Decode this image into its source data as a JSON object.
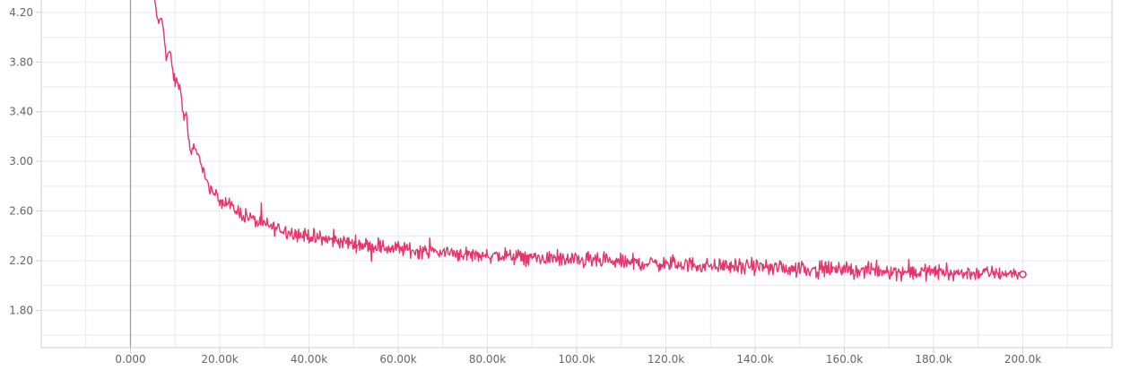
{
  "chart_data": {
    "type": "line",
    "title": "",
    "xlabel": "",
    "ylabel": "",
    "xlim": [
      -20000,
      220000
    ],
    "ylim": [
      1.5,
      4.3
    ],
    "grid": true,
    "legend": "none",
    "series_color": "#e8336d",
    "x_ticks": [
      {
        "value": 0,
        "label": "0.000"
      },
      {
        "value": 20000,
        "label": "20.00k"
      },
      {
        "value": 40000,
        "label": "40.00k"
      },
      {
        "value": 60000,
        "label": "60.00k"
      },
      {
        "value": 80000,
        "label": "80.00k"
      },
      {
        "value": 100000,
        "label": "100.0k"
      },
      {
        "value": 120000,
        "label": "120.0k"
      },
      {
        "value": 140000,
        "label": "140.0k"
      },
      {
        "value": 160000,
        "label": "160.0k"
      },
      {
        "value": 180000,
        "label": "180.0k"
      },
      {
        "value": 200000,
        "label": "200.0k"
      }
    ],
    "y_ticks": [
      {
        "value": 1.8,
        "label": "1.80"
      },
      {
        "value": 2.2,
        "label": "2.20"
      },
      {
        "value": 2.6,
        "label": "2.60"
      },
      {
        "value": 3.0,
        "label": "3.00"
      },
      {
        "value": 3.4,
        "label": "3.40"
      },
      {
        "value": 3.8,
        "label": "3.80"
      },
      {
        "value": 4.2,
        "label": "4.20"
      }
    ],
    "series": [
      {
        "name": "",
        "x": [
          5000,
          5500,
          6000,
          6500,
          7000,
          7500,
          8000,
          8500,
          9000,
          9500,
          10000,
          10500,
          11000,
          11500,
          12000,
          12500,
          13000,
          13500,
          14000,
          14500,
          15000,
          15500,
          16000,
          16500,
          17000,
          17500,
          18000,
          18500,
          19000,
          19500,
          20000,
          21000,
          22000,
          23000,
          24000,
          25000,
          26000,
          27000,
          28000,
          29000,
          30000,
          32000,
          34000,
          36000,
          38000,
          40000,
          42000,
          44000,
          46000,
          48000,
          50000,
          52000,
          54000,
          56000,
          58000,
          60000,
          62000,
          64000,
          66000,
          68000,
          70000,
          72000,
          74000,
          76000,
          78000,
          80000,
          82000,
          84000,
          86000,
          88000,
          90000,
          92000,
          94000,
          96000,
          98000,
          100000,
          102000,
          104000,
          106000,
          108000,
          110000,
          112000,
          114000,
          116000,
          118000,
          120000,
          122000,
          124000,
          126000,
          128000,
          130000,
          132000,
          134000,
          136000,
          138000,
          140000,
          142000,
          144000,
          146000,
          148000,
          150000,
          152000,
          154000,
          156000,
          158000,
          160000,
          162000,
          164000,
          166000,
          168000,
          170000,
          172000,
          174000,
          176000,
          178000,
          180000,
          182000,
          184000,
          186000,
          188000,
          190000,
          192000,
          194000,
          196000,
          198000,
          199000,
          200000
        ],
        "values": [
          4.35,
          4.28,
          4.15,
          4.12,
          4.15,
          4.05,
          3.82,
          3.88,
          3.85,
          3.72,
          3.62,
          3.66,
          3.58,
          3.52,
          3.32,
          3.38,
          3.22,
          3.05,
          3.1,
          3.08,
          3.05,
          3.02,
          2.98,
          2.92,
          2.84,
          2.8,
          2.77,
          2.75,
          2.73,
          2.72,
          2.7,
          2.67,
          2.65,
          2.62,
          2.6,
          2.58,
          2.56,
          2.54,
          2.52,
          2.5,
          2.49,
          2.47,
          2.45,
          2.43,
          2.41,
          2.4,
          2.38,
          2.37,
          2.36,
          2.35,
          2.34,
          2.33,
          2.32,
          2.31,
          2.3,
          2.3,
          2.29,
          2.28,
          2.28,
          2.27,
          2.27,
          2.26,
          2.26,
          2.25,
          2.25,
          2.24,
          2.24,
          2.24,
          2.23,
          2.23,
          2.22,
          2.22,
          2.22,
          2.21,
          2.21,
          2.2,
          2.2,
          2.2,
          2.19,
          2.19,
          2.19,
          2.18,
          2.18,
          2.18,
          2.18,
          2.17,
          2.17,
          2.17,
          2.17,
          2.16,
          2.16,
          2.16,
          2.16,
          2.15,
          2.15,
          2.15,
          2.15,
          2.14,
          2.14,
          2.14,
          2.14,
          2.13,
          2.13,
          2.13,
          2.13,
          2.13,
          2.12,
          2.12,
          2.12,
          2.12,
          2.12,
          2.11,
          2.11,
          2.11,
          2.11,
          2.11,
          2.11,
          2.1,
          2.1,
          2.1,
          2.1,
          2.1,
          2.1,
          2.1,
          2.1,
          2.09,
          2.09
        ],
        "noise": [
          0.04,
          0.05,
          0.04,
          0.04,
          0.03,
          0.04,
          0.05,
          0.04,
          0.05,
          0.06,
          0.07,
          0.06,
          0.07,
          0.06,
          0.07,
          0.06,
          0.07,
          0.06,
          0.06,
          0.05,
          0.06,
          0.06,
          0.07,
          0.06,
          0.06,
          0.05,
          0.05,
          0.05,
          0.06,
          0.06,
          0.07,
          0.08,
          0.08,
          0.08,
          0.08,
          0.08,
          0.08,
          0.08,
          0.08,
          0.08,
          0.08,
          0.08,
          0.08,
          0.08,
          0.08,
          0.08,
          0.08,
          0.08,
          0.08,
          0.08,
          0.08,
          0.08,
          0.08,
          0.08,
          0.08,
          0.08,
          0.08,
          0.08,
          0.08,
          0.08,
          0.08,
          0.08,
          0.08,
          0.08,
          0.08,
          0.08,
          0.08,
          0.08,
          0.08,
          0.08,
          0.08,
          0.08,
          0.08,
          0.08,
          0.08,
          0.08,
          0.08,
          0.08,
          0.08,
          0.08,
          0.08,
          0.08,
          0.08,
          0.08,
          0.08,
          0.08,
          0.08,
          0.08,
          0.08,
          0.08,
          0.08,
          0.08,
          0.08,
          0.08,
          0.08,
          0.08,
          0.08,
          0.08,
          0.08,
          0.08,
          0.08,
          0.08,
          0.08,
          0.08,
          0.08,
          0.08,
          0.08,
          0.08,
          0.08,
          0.08,
          0.08,
          0.08,
          0.08,
          0.08,
          0.08,
          0.08,
          0.08,
          0.08,
          0.08,
          0.08,
          0.08,
          0.08,
          0.08,
          0.08,
          0.08,
          0.05,
          0.02
        ]
      }
    ]
  }
}
